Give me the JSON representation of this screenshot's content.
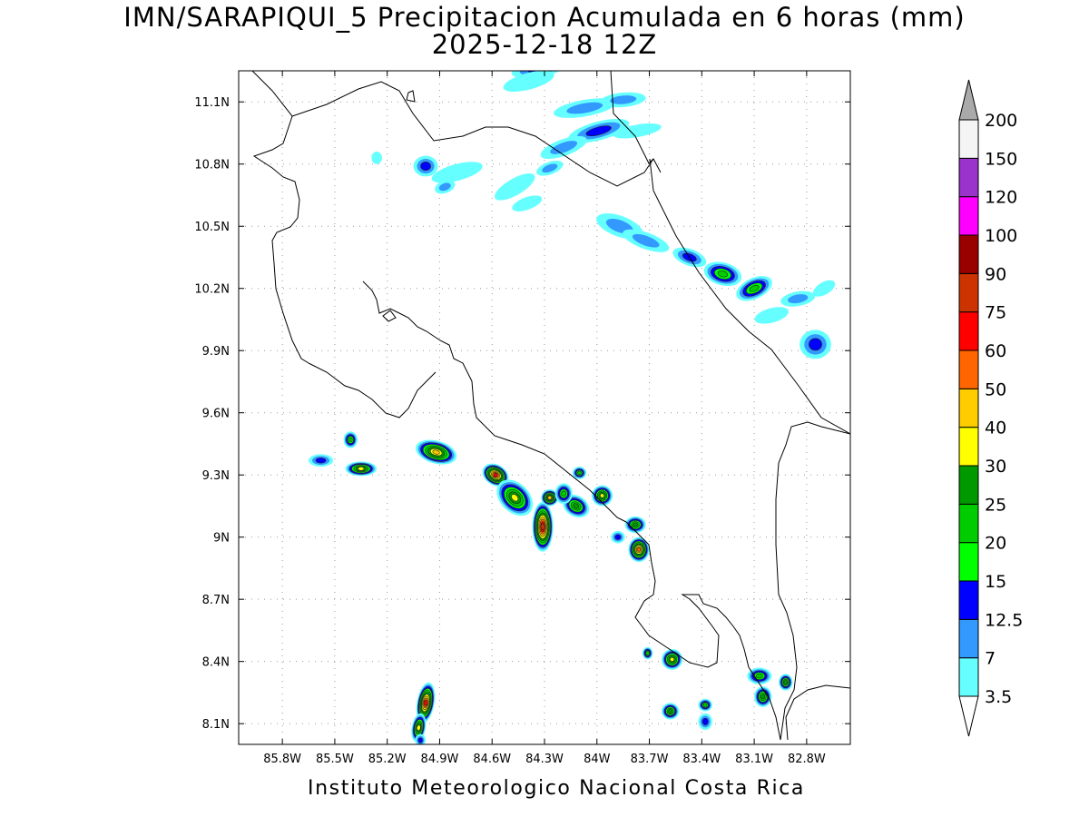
{
  "title": {
    "line1": "IMN/SARAPIQUI_5 Precipitacion Acumulada en 6 horas (mm)",
    "line2": "2025-12-18 12Z"
  },
  "credit": "Instituto Meteorologico Nacional Costa Rica",
  "map": {
    "lon_range": [
      -86.05,
      -82.55
    ],
    "lat_range": [
      8.0,
      11.25
    ],
    "lon_ticks": [
      "85.8W",
      "85.5W",
      "85.2W",
      "84.9W",
      "84.6W",
      "84.3W",
      "84W",
      "83.7W",
      "83.4W",
      "83.1W",
      "82.8W"
    ],
    "lat_ticks": [
      "11.1N",
      "10.8N",
      "10.5N",
      "10.2N",
      "9.9N",
      "9.6N",
      "9.3N",
      "9N",
      "8.7N",
      "8.4N",
      "8.1N"
    ],
    "grid": true
  },
  "colorbar": {
    "labels": [
      "3.5",
      "7",
      "12.5",
      "15",
      "20",
      "25",
      "30",
      "40",
      "50",
      "60",
      "75",
      "90",
      "100",
      "120",
      "150",
      "200"
    ],
    "colors": [
      "#66ffff",
      "#3399ff",
      "#0000ff",
      "#00ff00",
      "#00cc00",
      "#009900",
      "#ffff00",
      "#ffcc00",
      "#ff6600",
      "#ff0000",
      "#cc3300",
      "#990000",
      "#ff00ff",
      "#9933cc",
      "#f4f4f4"
    ],
    "over_color": "#aaaaaa",
    "under_color": "#ffffff"
  },
  "precip_cells": [
    {
      "lon": -84.33,
      "lat": 11.26,
      "rx": 0.16,
      "ry": 0.04,
      "rot": -10,
      "v": 12.5
    },
    {
      "lon": -84.39,
      "lat": 11.2,
      "rx": 0.15,
      "ry": 0.04,
      "rot": -15,
      "v": 3.5
    },
    {
      "lon": -84.07,
      "lat": 11.07,
      "rx": 0.18,
      "ry": 0.04,
      "rot": -10,
      "v": 7
    },
    {
      "lon": -83.85,
      "lat": 11.11,
      "rx": 0.13,
      "ry": 0.035,
      "rot": -5,
      "v": 7
    },
    {
      "lon": -83.99,
      "lat": 10.96,
      "rx": 0.18,
      "ry": 0.045,
      "rot": -15,
      "v": 12.5
    },
    {
      "lon": -83.77,
      "lat": 10.96,
      "rx": 0.14,
      "ry": 0.03,
      "rot": -10,
      "v": 3.5
    },
    {
      "lon": -84.19,
      "lat": 10.88,
      "rx": 0.14,
      "ry": 0.04,
      "rot": -20,
      "v": 7
    },
    {
      "lon": -85.26,
      "lat": 10.83,
      "rx": 0.03,
      "ry": 0.03,
      "rot": 0,
      "v": 3.5
    },
    {
      "lon": -84.98,
      "lat": 10.79,
      "rx": 0.07,
      "ry": 0.05,
      "rot": 0,
      "v": 12.5
    },
    {
      "lon": -84.8,
      "lat": 10.76,
      "rx": 0.15,
      "ry": 0.04,
      "rot": -15,
      "v": 3.5
    },
    {
      "lon": -84.87,
      "lat": 10.69,
      "rx": 0.06,
      "ry": 0.03,
      "rot": -20,
      "v": 7
    },
    {
      "lon": -84.47,
      "lat": 10.69,
      "rx": 0.13,
      "ry": 0.04,
      "rot": -30,
      "v": 3.5
    },
    {
      "lon": -84.27,
      "lat": 10.78,
      "rx": 0.08,
      "ry": 0.03,
      "rot": -20,
      "v": 7
    },
    {
      "lon": -84.4,
      "lat": 10.61,
      "rx": 0.09,
      "ry": 0.03,
      "rot": -20,
      "v": 3.5
    },
    {
      "lon": -83.87,
      "lat": 10.5,
      "rx": 0.14,
      "ry": 0.05,
      "rot": 20,
      "v": 7
    },
    {
      "lon": -83.72,
      "lat": 10.43,
      "rx": 0.14,
      "ry": 0.04,
      "rot": 20,
      "v": 7
    },
    {
      "lon": -83.47,
      "lat": 10.35,
      "rx": 0.1,
      "ry": 0.04,
      "rot": 20,
      "v": 12.5
    },
    {
      "lon": -83.28,
      "lat": 10.27,
      "rx": 0.11,
      "ry": 0.055,
      "rot": 15,
      "v": 20
    },
    {
      "lon": -83.1,
      "lat": 10.2,
      "rx": 0.11,
      "ry": 0.05,
      "rot": -25,
      "v": 20
    },
    {
      "lon": -83.0,
      "lat": 10.07,
      "rx": 0.1,
      "ry": 0.035,
      "rot": -15,
      "v": 3.5
    },
    {
      "lon": -82.85,
      "lat": 10.15,
      "rx": 0.1,
      "ry": 0.035,
      "rot": -10,
      "v": 7
    },
    {
      "lon": -82.75,
      "lat": 9.93,
      "rx": 0.09,
      "ry": 0.07,
      "rot": 0,
      "v": 12.5
    },
    {
      "lon": -82.7,
      "lat": 10.2,
      "rx": 0.07,
      "ry": 0.03,
      "rot": -30,
      "v": 3.5
    },
    {
      "lon": -85.58,
      "lat": 9.37,
      "rx": 0.07,
      "ry": 0.03,
      "rot": 0,
      "v": 12.5
    },
    {
      "lon": -85.41,
      "lat": 9.47,
      "rx": 0.04,
      "ry": 0.04,
      "rot": 0,
      "v": 20
    },
    {
      "lon": -85.35,
      "lat": 9.33,
      "rx": 0.09,
      "ry": 0.035,
      "rot": 0,
      "v": 30
    },
    {
      "lon": -84.92,
      "lat": 9.41,
      "rx": 0.12,
      "ry": 0.055,
      "rot": 15,
      "v": 40
    },
    {
      "lon": -84.58,
      "lat": 9.3,
      "rx": 0.08,
      "ry": 0.05,
      "rot": 30,
      "v": 60
    },
    {
      "lon": -84.47,
      "lat": 9.19,
      "rx": 0.12,
      "ry": 0.07,
      "rot": 45,
      "v": 30
    },
    {
      "lon": -84.31,
      "lat": 9.05,
      "rx": 0.06,
      "ry": 0.12,
      "rot": 0,
      "v": 75
    },
    {
      "lon": -84.27,
      "lat": 9.19,
      "rx": 0.05,
      "ry": 0.04,
      "rot": 0,
      "v": 40
    },
    {
      "lon": -84.12,
      "lat": 9.15,
      "rx": 0.08,
      "ry": 0.05,
      "rot": 30,
      "v": 25
    },
    {
      "lon": -84.19,
      "lat": 9.21,
      "rx": 0.05,
      "ry": 0.05,
      "rot": 0,
      "v": 20
    },
    {
      "lon": -84.1,
      "lat": 9.31,
      "rx": 0.04,
      "ry": 0.03,
      "rot": 0,
      "v": 20
    },
    {
      "lon": -83.97,
      "lat": 9.2,
      "rx": 0.06,
      "ry": 0.05,
      "rot": 0,
      "v": 30
    },
    {
      "lon": -83.78,
      "lat": 9.06,
      "rx": 0.06,
      "ry": 0.04,
      "rot": 0,
      "v": 25
    },
    {
      "lon": -83.76,
      "lat": 8.94,
      "rx": 0.06,
      "ry": 0.06,
      "rot": 0,
      "v": 50
    },
    {
      "lon": -83.88,
      "lat": 9.0,
      "rx": 0.04,
      "ry": 0.03,
      "rot": 0,
      "v": 12.5
    },
    {
      "lon": -83.71,
      "lat": 8.44,
      "rx": 0.03,
      "ry": 0.03,
      "rot": 0,
      "v": 20
    },
    {
      "lon": -83.57,
      "lat": 8.41,
      "rx": 0.06,
      "ry": 0.05,
      "rot": -20,
      "v": 30
    },
    {
      "lon": -83.58,
      "lat": 8.16,
      "rx": 0.05,
      "ry": 0.04,
      "rot": 0,
      "v": 25
    },
    {
      "lon": -83.38,
      "lat": 8.19,
      "rx": 0.04,
      "ry": 0.03,
      "rot": 0,
      "v": 20
    },
    {
      "lon": -83.38,
      "lat": 8.11,
      "rx": 0.04,
      "ry": 0.04,
      "rot": 0,
      "v": 12.5
    },
    {
      "lon": -83.07,
      "lat": 8.33,
      "rx": 0.07,
      "ry": 0.04,
      "rot": 0,
      "v": 20
    },
    {
      "lon": -83.05,
      "lat": 8.23,
      "rx": 0.05,
      "ry": 0.05,
      "rot": 0,
      "v": 25
    },
    {
      "lon": -82.92,
      "lat": 8.3,
      "rx": 0.04,
      "ry": 0.04,
      "rot": 0,
      "v": 25
    },
    {
      "lon": -84.98,
      "lat": 8.2,
      "rx": 0.05,
      "ry": 0.1,
      "rot": 10,
      "v": 60
    },
    {
      "lon": -85.02,
      "lat": 8.08,
      "rx": 0.04,
      "ry": 0.07,
      "rot": 10,
      "v": 30
    },
    {
      "lon": -85.01,
      "lat": 8.02,
      "rx": 0.03,
      "ry": 0.03,
      "rot": 0,
      "v": 12.5
    }
  ]
}
